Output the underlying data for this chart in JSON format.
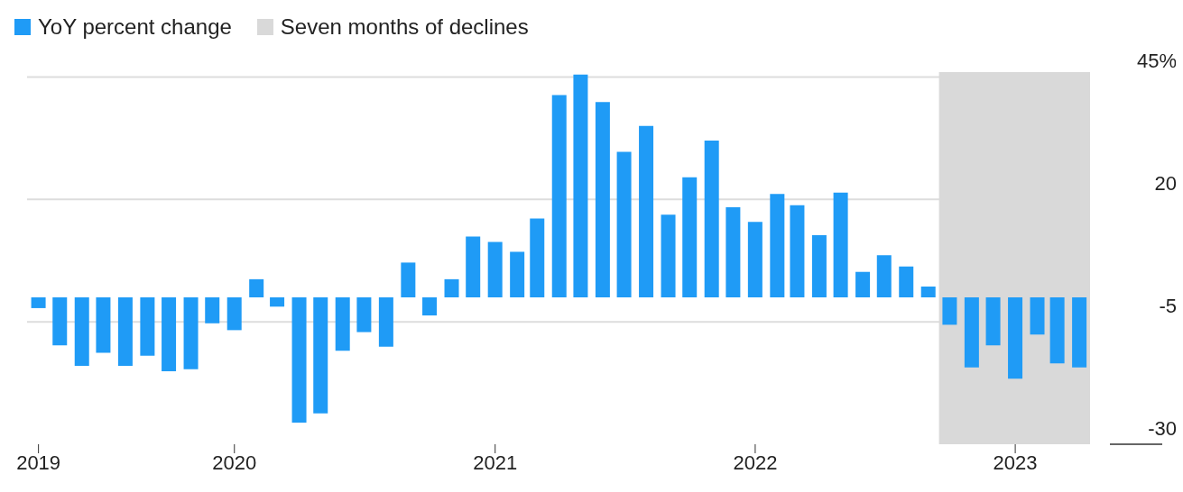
{
  "chart_data": {
    "type": "bar",
    "x": [
      "2019-04",
      "2019-05",
      "2019-06",
      "2019-07",
      "2019-08",
      "2019-09",
      "2019-10",
      "2019-11",
      "2019-12",
      "2020-01",
      "2020-02",
      "2020-03",
      "2020-04",
      "2020-05",
      "2020-06",
      "2020-07",
      "2020-08",
      "2020-09",
      "2020-10",
      "2020-11",
      "2020-12",
      "2021-01",
      "2021-02",
      "2021-03",
      "2021-04",
      "2021-05",
      "2021-06",
      "2021-07",
      "2021-08",
      "2021-09",
      "2021-10",
      "2021-11",
      "2021-12",
      "2022-01",
      "2022-02",
      "2022-03",
      "2022-04",
      "2022-05",
      "2022-06",
      "2022-07",
      "2022-08",
      "2022-09",
      "2022-10",
      "2022-11",
      "2022-12",
      "2023-01",
      "2023-02",
      "2023-03",
      "2023-04"
    ],
    "series": [
      {
        "name": "YoY percent change",
        "color": "#1f9bf6",
        "values": [
          -2.2,
          -9.8,
          -14.0,
          -11.3,
          -14.0,
          -11.9,
          -15.1,
          -14.7,
          -5.3,
          -6.7,
          3.7,
          -1.9,
          -25.6,
          -23.7,
          -10.9,
          -7.1,
          -10.1,
          7.1,
          -3.7,
          3.7,
          12.4,
          11.3,
          9.3,
          16.1,
          41.3,
          45.5,
          39.9,
          29.7,
          35.0,
          16.9,
          24.5,
          32.0,
          18.4,
          15.4,
          21.1,
          18.8,
          12.7,
          21.4,
          5.2,
          8.6,
          6.3,
          2.2,
          -5.6,
          -14.3,
          -9.8,
          -16.6,
          -7.6,
          -13.5,
          -14.3
        ]
      }
    ],
    "xlim": [
      "2019-03-16",
      "2023-04-16"
    ],
    "xticks": [
      {
        "value": "2019-04",
        "label": "2019"
      },
      {
        "value": "2020-01",
        "label": "2020"
      },
      {
        "value": "2021-01",
        "label": "2021"
      },
      {
        "value": "2022-01",
        "label": "2022"
      },
      {
        "value": "2023-01",
        "label": "2023"
      }
    ],
    "ylim": [
      -30,
      46
    ],
    "yticks": [
      -30,
      -5,
      20,
      {
        "value": 45,
        "label": "45%"
      }
    ],
    "bands": [
      {
        "axis": "x",
        "from": "2022-09-16",
        "to": "2023-04-16",
        "label": "Seven months of declines",
        "color": "#d9d9d9"
      }
    ],
    "grid": "y",
    "legend": "top left"
  }
}
